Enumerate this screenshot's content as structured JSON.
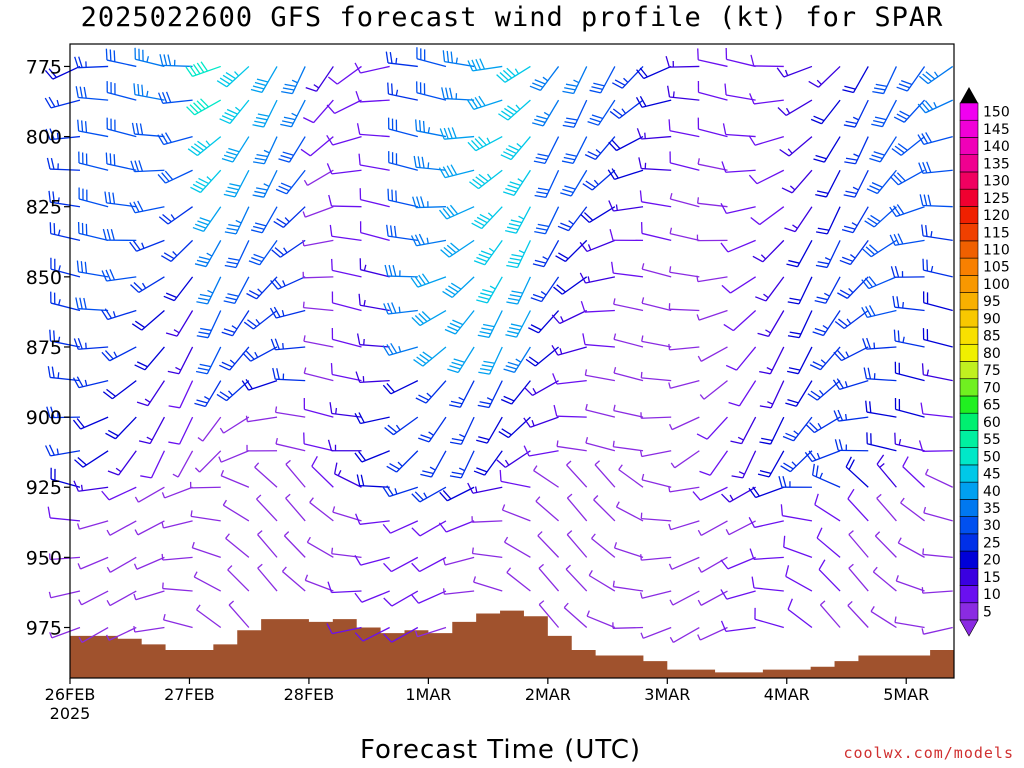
{
  "chart_data": {
    "type": "wind-barb-profile",
    "title": "2025022600 GFS forecast wind profile (kt) for SPAR",
    "xlabel": "Forecast Time (UTC)",
    "credit": "coolwx.com/models",
    "yaxis": {
      "label": "",
      "ticks": [
        775,
        800,
        825,
        850,
        875,
        900,
        925,
        950,
        975
      ],
      "range": [
        767,
        993
      ],
      "inverted": true
    },
    "xaxis": {
      "ticks": [
        {
          "label": "26FEB",
          "sublabel": "2025"
        },
        {
          "label": "27FEB",
          "sublabel": ""
        },
        {
          "label": "28FEB",
          "sublabel": ""
        },
        {
          "label": "1MAR",
          "sublabel": ""
        },
        {
          "label": "2MAR",
          "sublabel": ""
        },
        {
          "label": "3MAR",
          "sublabel": ""
        },
        {
          "label": "4MAR",
          "sublabel": ""
        },
        {
          "label": "5MAR",
          "sublabel": ""
        }
      ],
      "range_days": [
        0,
        7.4
      ]
    },
    "terrain": {
      "color": "#a0522d",
      "times_days": [
        0,
        0.2,
        0.4,
        0.6,
        0.8,
        1.0,
        1.2,
        1.4,
        1.6,
        1.8,
        2.0,
        2.2,
        2.4,
        2.6,
        2.8,
        3.0,
        3.2,
        3.4,
        3.6,
        3.8,
        4.0,
        4.2,
        4.4,
        4.6,
        4.8,
        5.0,
        5.2,
        5.4,
        5.6,
        5.8,
        6.0,
        6.2,
        6.4,
        6.6,
        6.8,
        7.0,
        7.2,
        7.4
      ],
      "surface_hpa": [
        978,
        978,
        979,
        981,
        983,
        983,
        981,
        976,
        972,
        972,
        973,
        972,
        975,
        977,
        976,
        977,
        973,
        970,
        969,
        971,
        978,
        983,
        985,
        985,
        987,
        990,
        990,
        991,
        991,
        990,
        990,
        989,
        987,
        985,
        985,
        985,
        983,
        976
      ]
    },
    "wind_speed_colorbar": {
      "unit": "kt",
      "labels": [
        "5",
        "10",
        "15",
        "20",
        "25",
        "30",
        "35",
        "40",
        "45",
        "50",
        "55",
        "60",
        "65",
        "70",
        "75",
        "80",
        "85",
        "90",
        "95",
        "100",
        "105",
        "110",
        "115",
        "120",
        "125",
        "130",
        "135",
        "140",
        "145",
        "150"
      ],
      "colors": [
        "#8a2be2",
        "#6a10f0",
        "#3a00e0",
        "#0000d8",
        "#0030e8",
        "#0050f0",
        "#0078f0",
        "#00a0f0",
        "#00c8e8",
        "#00e8c8",
        "#00f0a0",
        "#00f070",
        "#20f020",
        "#70f020",
        "#c0f020",
        "#f0f000",
        "#f8e000",
        "#f8c800",
        "#f8b000",
        "#f89800",
        "#f88000",
        "#f06000",
        "#f04000",
        "#f02000",
        "#f00030",
        "#f00060",
        "#f00090",
        "#f000b8",
        "#f000d8",
        "#f000f0"
      ]
    },
    "wind_field": {
      "barb_rows_hpa": [
        775,
        787,
        800,
        812,
        825,
        837,
        850,
        862,
        875,
        887,
        900,
        912,
        925,
        937,
        950,
        962,
        975
      ],
      "columns": 32,
      "note_source": "barbs reproduced visually from the figure"
    },
    "grid": false,
    "legend_position": "right"
  }
}
